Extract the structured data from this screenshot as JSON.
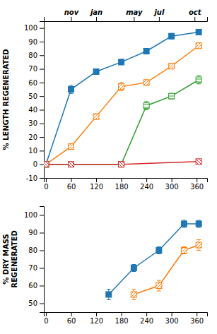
{
  "chart_data": [
    {
      "type": "line",
      "ylabel": "% LENGTH REGENERATED",
      "xlim": [
        -5,
        385
      ],
      "xticks": [
        0,
        60,
        120,
        180,
        240,
        300,
        360
      ],
      "x2lim": [
        -5,
        385
      ],
      "x2ticks": [
        {
          "value": 60,
          "label": "nov"
        },
        {
          "value": 120,
          "label": "jan"
        },
        {
          "value": 210,
          "label": "may"
        },
        {
          "value": 270,
          "label": "jul"
        },
        {
          "value": 355,
          "label": "oct"
        }
      ],
      "ylim": [
        -10,
        105
      ],
      "yticks": [
        -10,
        0,
        10,
        20,
        30,
        40,
        50,
        60,
        70,
        80,
        90,
        100
      ],
      "series": [
        {
          "x": [
            0,
            60,
            120,
            180,
            240,
            300,
            365
          ],
          "values": [
            0,
            55,
            68,
            75,
            83,
            94,
            97
          ],
          "yerr": [
            0,
            3,
            2,
            2,
            2,
            2,
            1.5
          ],
          "marker": "square"
        },
        {
          "x": [
            0,
            60,
            120,
            180,
            240,
            300,
            365
          ],
          "values": [
            0,
            13,
            35,
            57,
            60,
            72,
            87
          ],
          "yerr": [
            0,
            2,
            2,
            3,
            2,
            2,
            2
          ],
          "marker": "square-hatch-diagonal"
        },
        {
          "x": [
            0,
            180,
            240,
            300,
            365
          ],
          "values": [
            0,
            0,
            43,
            50,
            62
          ],
          "yerr": [
            0,
            0,
            3,
            2,
            3
          ],
          "marker": "square-hatch-horizontal"
        },
        {
          "x": [
            0,
            60,
            180,
            365
          ],
          "values": [
            0,
            0,
            0,
            2
          ],
          "yerr": [
            0,
            0,
            0,
            1
          ],
          "marker": "square-hatch-backdiagonal"
        }
      ]
    },
    {
      "type": "line",
      "ylabel": "% DRY MASS\nREGENERATED",
      "xlim": [
        -5,
        385
      ],
      "xticks": [
        0,
        60,
        120,
        180,
        240,
        300,
        360
      ],
      "ylim": [
        45,
        105
      ],
      "yticks": [
        50,
        60,
        70,
        80,
        90,
        100
      ],
      "series": [
        {
          "x": [
            150,
            210,
            270,
            330,
            365
          ],
          "values": [
            55,
            70,
            80,
            95,
            95
          ],
          "yerr": [
            3,
            2,
            2,
            2,
            2
          ],
          "marker": "square"
        },
        {
          "x": [
            210,
            270,
            330,
            365
          ],
          "values": [
            55,
            60,
            80,
            83
          ],
          "yerr": [
            3,
            3,
            2,
            3
          ],
          "marker": "square-hatch-diagonal"
        }
      ]
    }
  ]
}
